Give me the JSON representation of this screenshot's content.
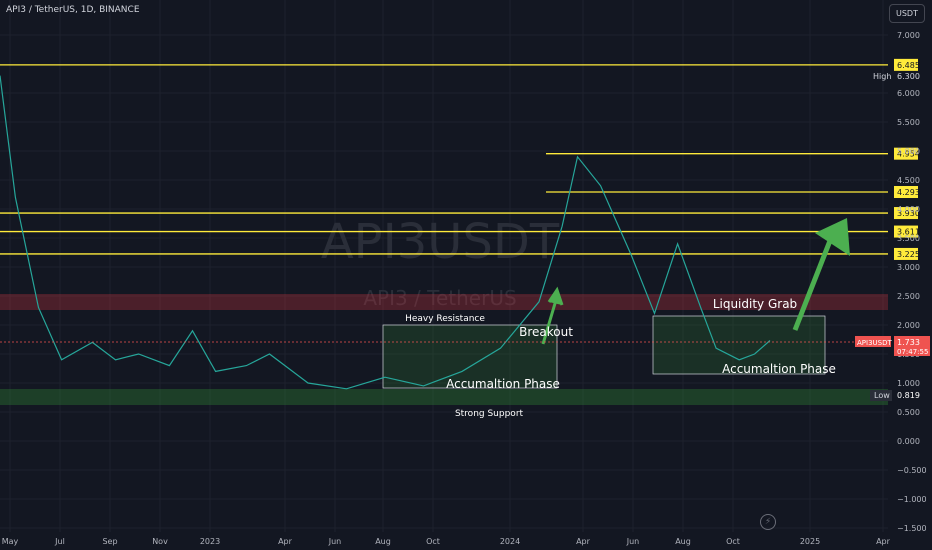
{
  "header": {
    "title": "API3 / TetherUS, 1D, BINANCE",
    "unit": "USDT"
  },
  "watermark": {
    "symbol": "API3USDT",
    "name": "API3 / TetherUS"
  },
  "colors": {
    "background": "#131722",
    "up": "#26a69a",
    "down": "#ef5350",
    "level": "#ffeb3b",
    "zone_green": "#2e7d32",
    "zone_red": "#f23645",
    "arrow": "#4caf50"
  },
  "chart_data": {
    "type": "line",
    "x_ticks": [
      "May",
      "Jul",
      "Sep",
      "Nov",
      "2023",
      "Apr",
      "Jun",
      "Aug",
      "Oct",
      "2024",
      "Apr",
      "Jun",
      "Aug",
      "Oct",
      "2025",
      "Apr"
    ],
    "y_ticks": [
      "7.000",
      "6.000",
      "5.500",
      "5.000",
      "4.500",
      "4.000",
      "3.500",
      "3.000",
      "2.500",
      "2.000",
      "1.500",
      "1.000",
      "0.500",
      "0.000",
      "−0.500",
      "−1.000",
      "−1.500"
    ],
    "ylim": [
      -1.5,
      7.5
    ],
    "levels": [
      {
        "value": 6.485,
        "label": "6.485"
      },
      {
        "value": 4.954,
        "label": "4.954"
      },
      {
        "value": 4.293,
        "label": "4.293"
      },
      {
        "value": 3.93,
        "label": "3.930"
      },
      {
        "value": 3.611,
        "label": "3.611"
      },
      {
        "value": 3.225,
        "label": "3.225"
      }
    ],
    "high": {
      "label": "High",
      "value": "6.300"
    },
    "low": {
      "label": "Low",
      "value": "0.819"
    },
    "last_price": {
      "symbol": "API3USDT",
      "value": "1.733",
      "countdown": "07:47:55"
    },
    "annotations": {
      "heavy_resistance": "Heavy Resistance",
      "breakout": "Breakout",
      "accumulation_1": "Accumaltion Phase",
      "liquidity_grab": "Liquidity Grab",
      "accumulation_2": "Accumaltion Phase",
      "strong_support": "Strong Support"
    },
    "price_series": [
      [
        0.0,
        6.3
      ],
      [
        0.02,
        4.2
      ],
      [
        0.05,
        2.3
      ],
      [
        0.08,
        1.4
      ],
      [
        0.12,
        1.7
      ],
      [
        0.15,
        1.4
      ],
      [
        0.18,
        1.5
      ],
      [
        0.22,
        1.3
      ],
      [
        0.25,
        1.9
      ],
      [
        0.28,
        1.2
      ],
      [
        0.32,
        1.3
      ],
      [
        0.35,
        1.5
      ],
      [
        0.4,
        1.0
      ],
      [
        0.45,
        0.9
      ],
      [
        0.5,
        1.1
      ],
      [
        0.55,
        0.95
      ],
      [
        0.6,
        1.2
      ],
      [
        0.65,
        1.6
      ],
      [
        0.7,
        2.4
      ],
      [
        0.73,
        3.7
      ],
      [
        0.75,
        4.9
      ],
      [
        0.78,
        4.4
      ],
      [
        0.8,
        3.8
      ],
      [
        0.82,
        3.2
      ],
      [
        0.85,
        2.2
      ],
      [
        0.88,
        3.4
      ],
      [
        0.91,
        2.3
      ],
      [
        0.93,
        1.6
      ],
      [
        0.96,
        1.4
      ],
      [
        0.98,
        1.5
      ],
      [
        1.0,
        1.733
      ]
    ]
  }
}
